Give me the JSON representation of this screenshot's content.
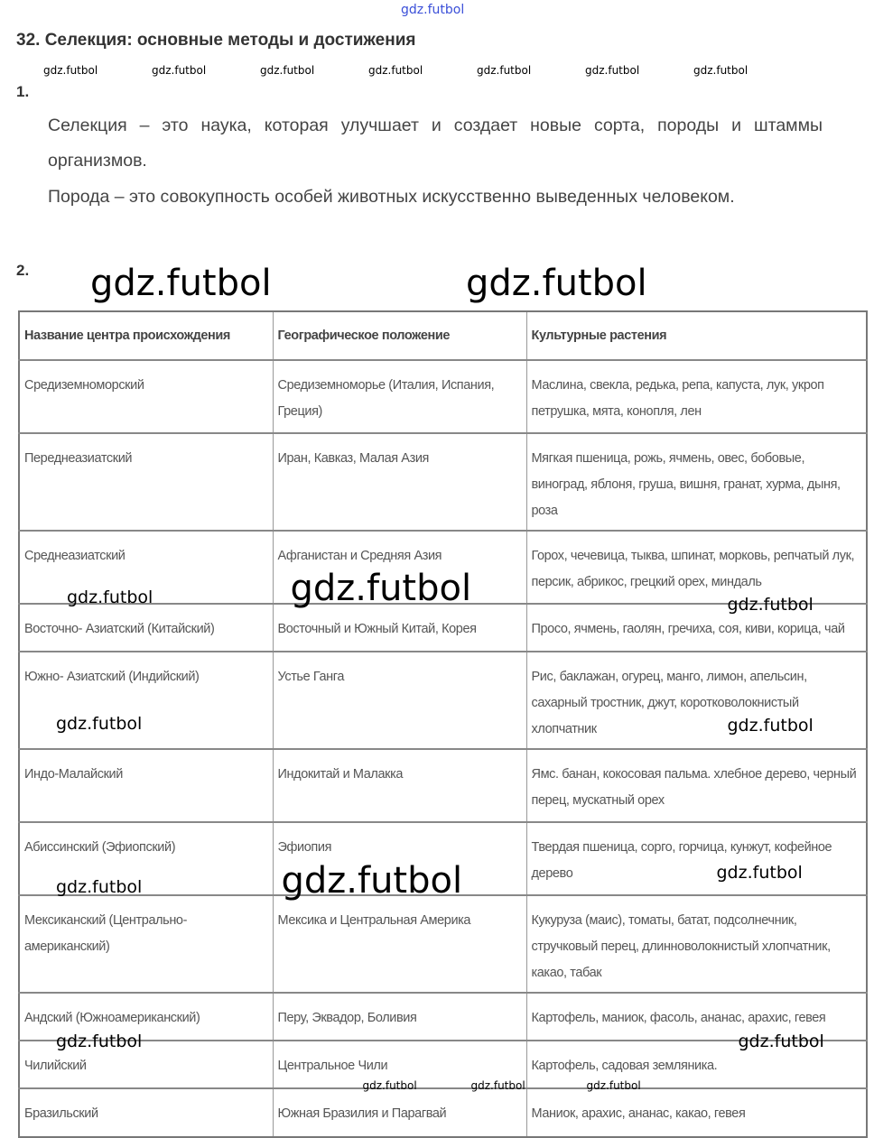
{
  "watermark": "gdz.futbol",
  "title": "32. Селекция: основные методы и достижения",
  "section1": {
    "number": "1.",
    "para1": "Селекция – это наука, которая улучшает и создает новые сорта, породы и штаммы организмов.",
    "para2": "Порода – это совокупность особей животных искусственно выведенных человеком."
  },
  "section2": {
    "number": "2.",
    "table": {
      "headers": [
        "Название центра происхождения",
        "Географическое положение",
        "Культурные растения"
      ],
      "rows": [
        [
          "Средиземноморский",
          "Средиземноморье (Италия, Испания, Греция)",
          "Маслина, свекла, редька, репа, капуста, лук, укроп петрушка, мята, конопля, лен"
        ],
        [
          "Переднеазиатский",
          "Иран, Кавказ, Малая Азия",
          "Мягкая пшеница, рожь, ячмень, овес, бобовые, виноград, яблоня, груша, вишня, гранат, хурма, дыня, роза"
        ],
        [
          "Среднеазиатский",
          "Афганистан и Средняя Азия",
          "Горох, чечевица, тыква, шпинат, морковь, репчатый лук, персик, абрикос, грецкий орех, миндаль"
        ],
        [
          "Восточно- Азиатский (Китайский)",
          "Восточный и Южный Китай, Корея",
          "Просо, ячмень, гаолян, гречиха, соя, киви, корица, чай"
        ],
        [
          "Южно- Азиатский (Индийский)",
          "Устье Ганга",
          "Рис, баклажан, огурец, манго, лимон, апельсин, сахарный тростник, джут, коротковолокнистый хлопчатник"
        ],
        [
          "Индо-Малайский",
          "Индокитай и Малакка",
          "Ямс. банан, кокосовая пальма. хлебное дерево, черный перец, мускатный орех"
        ],
        [
          "Абиссинский (Эфиопский)",
          "Эфиопия",
          "Твердая пшеница, сорго, горчица, кунжут, кофейное дерево"
        ],
        [
          "Мексиканский (Центрально-американский)",
          "Мексика и Центральная Америка",
          "Кукуруза (маис), томаты, батат, подсолнечник, стручковый перец, длинноволокнистый хлопчатник, какао, табак"
        ],
        [
          "Андский (Южноамериканский)",
          "Перу, Эквадор, Боливия",
          "Картофель, маниок, фасоль, ананас, арахис, гевея"
        ],
        [
          "Чилийский",
          "Центральное Чили",
          "Картофель, садовая земляника."
        ],
        [
          "Бразильский",
          "Южная Бразилия и Парагвай",
          "Маниок, арахис, ананас, какао, гевея"
        ]
      ]
    }
  }
}
